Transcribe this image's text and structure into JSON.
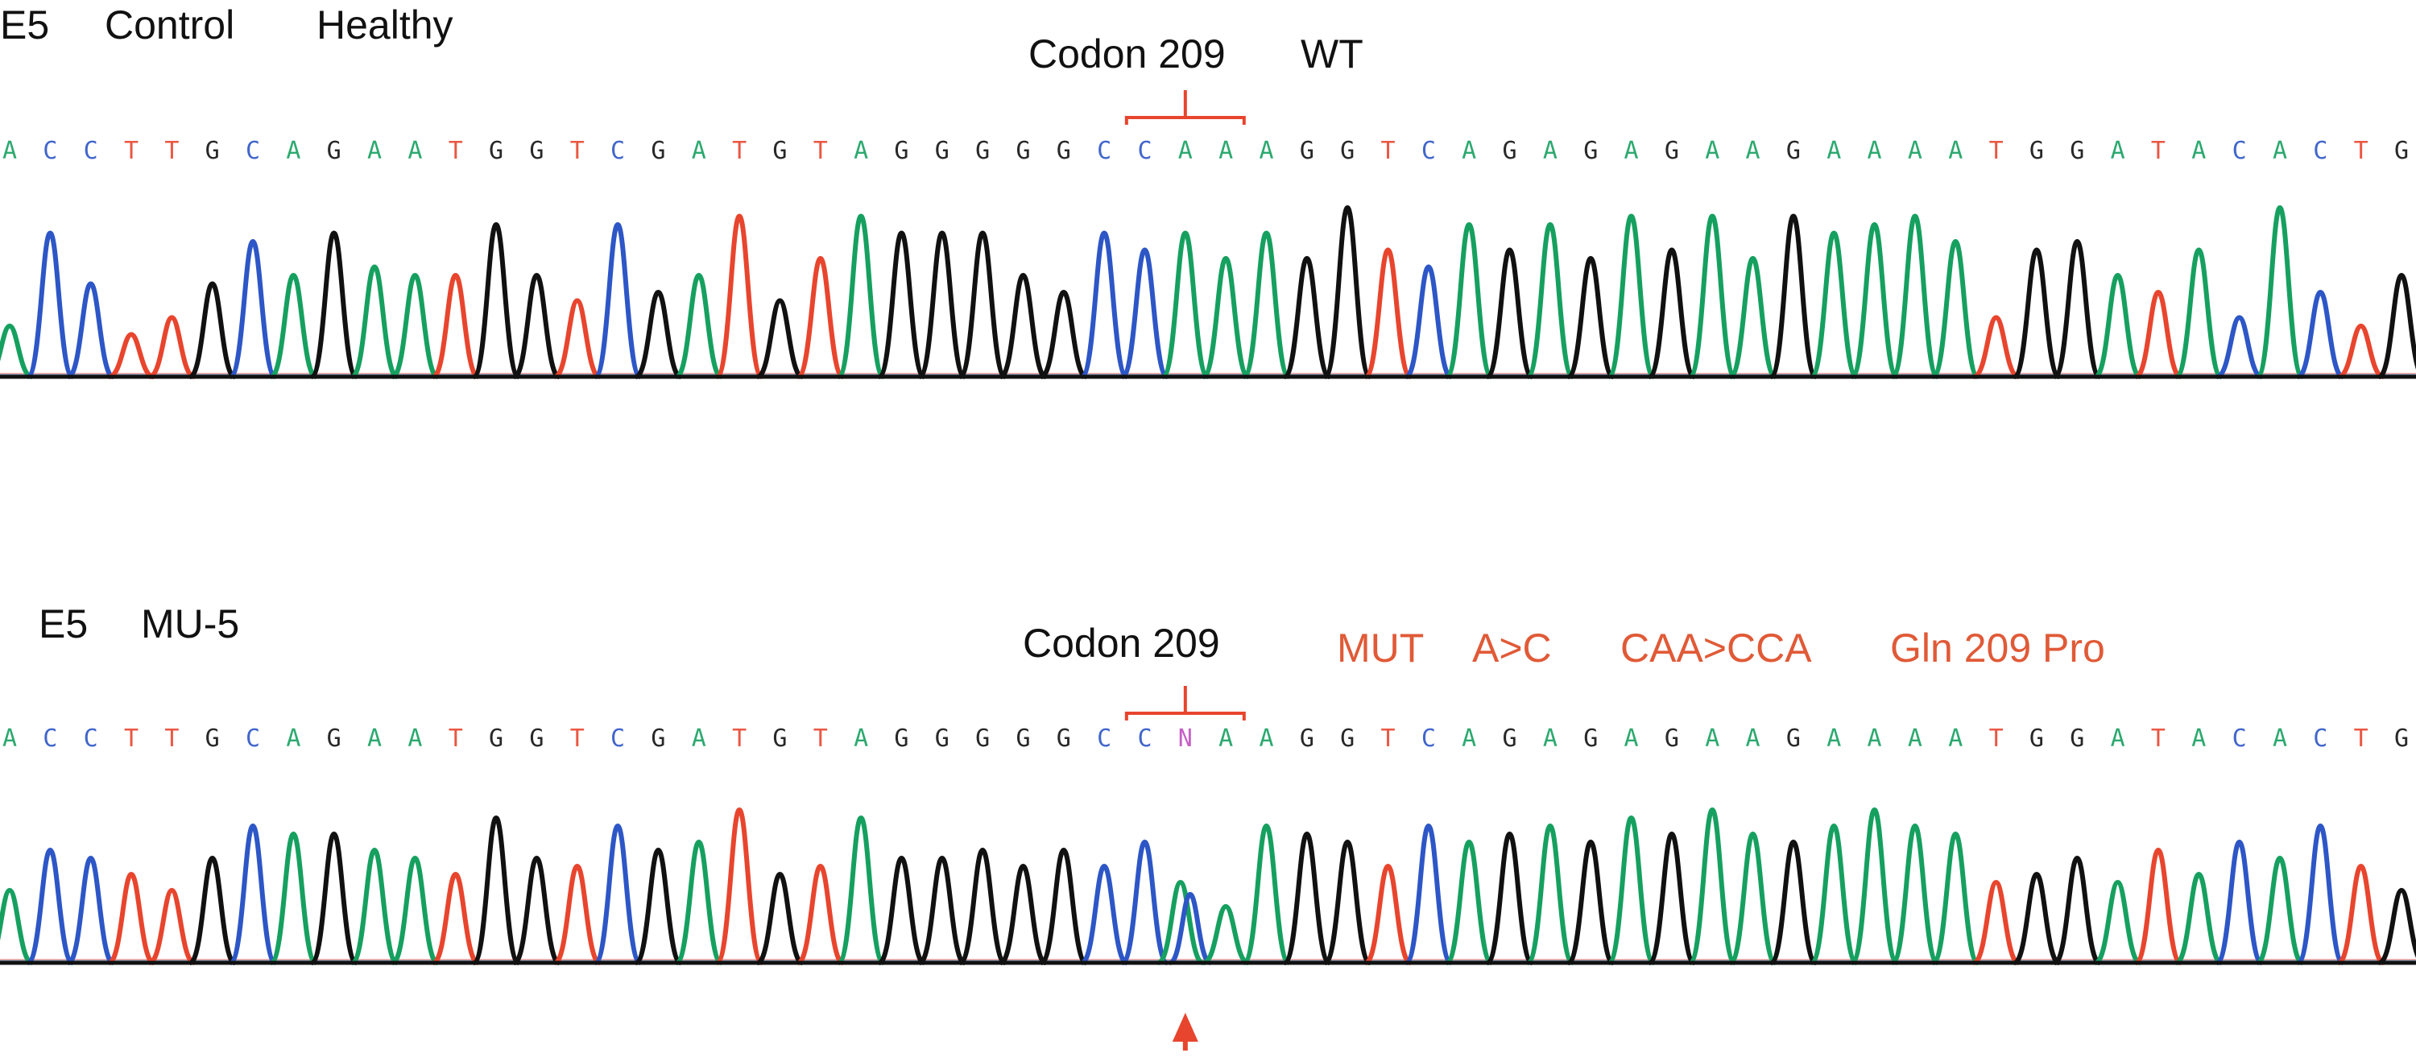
{
  "colors": {
    "A": "#16a060",
    "C": "#2d56c6",
    "G": "#111111",
    "T": "#e8452e",
    "N": "#c04fc0",
    "bracket": "#e8452e",
    "arrow": "#e8452e",
    "mutation_text": "#e05a37"
  },
  "panels": [
    {
      "id": "control",
      "labels": [
        "E5",
        "Control",
        "Healthy"
      ],
      "codon_label": "Codon 209",
      "status_label": "WT",
      "sequence": "ACCTTGCAGAATGGTCGATGTAGGGGGCCAAAGGTCAGAGAGAAGAAAATGGATACACTG",
      "codon_start_index": 28,
      "peak_levels": [
        0.3,
        0.85,
        0.55,
        0.25,
        0.35,
        0.55,
        0.8,
        0.6,
        0.85,
        0.65,
        0.6,
        0.6,
        0.9,
        0.6,
        0.45,
        0.9,
        0.5,
        0.6,
        0.95,
        0.45,
        0.7,
        0.95,
        0.85,
        0.85,
        0.85,
        0.6,
        0.5,
        0.85,
        0.75,
        0.85,
        0.7,
        0.85,
        0.7,
        1.0,
        0.75,
        0.65,
        0.9,
        0.75,
        0.9,
        0.7,
        0.95,
        0.75,
        0.95,
        0.7,
        0.95,
        0.85,
        0.9,
        0.95,
        0.8,
        0.35,
        0.75,
        0.8,
        0.6,
        0.5,
        0.75,
        0.35,
        1.0,
        0.5,
        0.3,
        0.6
      ]
    },
    {
      "id": "mutant",
      "labels": [
        "E5",
        "MU-5"
      ],
      "codon_label": "Codon 209",
      "mutation_labels": [
        "MUT",
        "A>C",
        "CAA>CCA",
        "Gln 209 Pro"
      ],
      "sequence": "ACCTTGCAGAATGGTCGATGTAGGGGGCCNAAGGTCAGAGAGAAGAAAATGGATACACTG",
      "codon_start_index": 28,
      "peak_levels": [
        0.45,
        0.7,
        0.65,
        0.55,
        0.45,
        0.65,
        0.85,
        0.8,
        0.8,
        0.7,
        0.65,
        0.55,
        0.9,
        0.65,
        0.6,
        0.85,
        0.7,
        0.75,
        0.95,
        0.55,
        0.6,
        0.9,
        0.65,
        0.65,
        0.7,
        0.6,
        0.7,
        0.6,
        0.75,
        0.5,
        0.35,
        0.85,
        0.8,
        0.75,
        0.6,
        0.85,
        0.75,
        0.8,
        0.85,
        0.75,
        0.9,
        0.8,
        0.95,
        0.8,
        0.75,
        0.85,
        0.95,
        0.85,
        0.8,
        0.5,
        0.55,
        0.65,
        0.5,
        0.7,
        0.55,
        0.75,
        0.65,
        0.85,
        0.6,
        0.45
      ],
      "mutation_marker_index": 29
    }
  ]
}
